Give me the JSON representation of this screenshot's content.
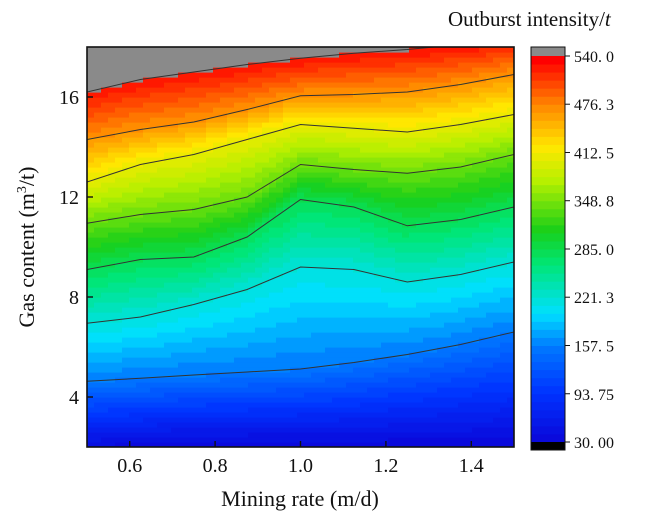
{
  "chart_data": {
    "type": "heatmap",
    "xlabel": "Mining rate (m/d)",
    "ylabel_prefix": "Gas content (m",
    "ylabel_superscript": "3",
    "ylabel_suffix": "/t)",
    "colorbar_title_main": "Outburst intensity/",
    "colorbar_title_unit": "t",
    "xlim": [
      0.5,
      1.5
    ],
    "ylim": [
      2,
      18
    ],
    "x_ticks": [
      0.6,
      0.8,
      1.0,
      1.2,
      1.4
    ],
    "x_tick_labels": [
      "0.6",
      "0.8",
      "1.0",
      "1.2",
      "1.4"
    ],
    "y_ticks": [
      4,
      8,
      12,
      16
    ],
    "y_tick_labels": [
      "4",
      "8",
      "12",
      "16"
    ],
    "color_range": [
      30,
      540
    ],
    "colorbar_ticks": [
      540.0,
      476.3,
      412.5,
      348.8,
      285.0,
      221.3,
      157.5,
      93.75,
      30.0
    ],
    "colorbar_tick_labels": [
      "540. 0",
      "476. 3",
      "412. 5",
      "348. 8",
      "285. 0",
      "221. 3",
      "157. 5",
      "93. 75",
      "30. 00"
    ],
    "colorbar_overflow_color": "#8a8a8a",
    "colorbar_underflow_color": "#000000",
    "colorscale": [
      [
        0.0,
        "#0a0adc"
      ],
      [
        0.12,
        "#0033ff"
      ],
      [
        0.24,
        "#0077ff"
      ],
      [
        0.33,
        "#00e0ff"
      ],
      [
        0.46,
        "#00e676"
      ],
      [
        0.55,
        "#19cf19"
      ],
      [
        0.68,
        "#b6f000"
      ],
      [
        0.77,
        "#ffe800"
      ],
      [
        0.88,
        "#ff8800"
      ],
      [
        1.0,
        "#ff0000"
      ]
    ],
    "contour_levels": [
      {
        "value": 157.5,
        "y": [
          4.63,
          4.75,
          4.88,
          5.0,
          5.12,
          5.38,
          5.7,
          6.1,
          6.6
        ]
      },
      {
        "value": 221.3,
        "y": [
          6.95,
          7.2,
          7.7,
          8.3,
          9.2,
          9.1,
          8.6,
          8.9,
          9.4
        ]
      },
      {
        "value": 285.0,
        "y": [
          9.1,
          9.5,
          9.6,
          10.4,
          11.9,
          11.6,
          10.85,
          11.1,
          11.6
        ]
      },
      {
        "value": 348.8,
        "y": [
          10.95,
          11.3,
          11.5,
          12.0,
          13.3,
          13.1,
          12.95,
          13.2,
          13.7
        ]
      },
      {
        "value": 412.5,
        "y": [
          12.6,
          13.3,
          13.7,
          14.3,
          14.9,
          14.75,
          14.6,
          14.9,
          15.3
        ]
      },
      {
        "value": 476.3,
        "y": [
          14.3,
          14.7,
          15.0,
          15.5,
          16.05,
          16.1,
          16.2,
          16.5,
          16.9
        ]
      },
      {
        "value": 540.0,
        "y": [
          16.2,
          16.7,
          17.0,
          17.3,
          17.55,
          17.75,
          17.9,
          18.1,
          18.3
        ]
      }
    ],
    "contour_x": [
      0.5,
      0.625,
      0.75,
      0.875,
      1.0,
      1.125,
      1.25,
      1.375,
      1.5
    ]
  }
}
